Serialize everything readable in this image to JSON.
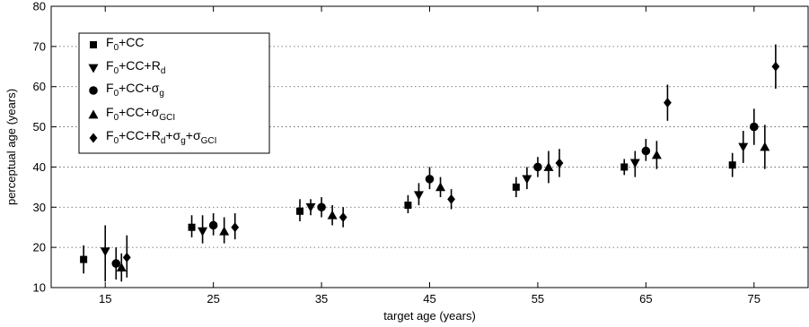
{
  "chart_data": {
    "type": "scatter",
    "title": "",
    "xlabel": "target age (years)",
    "ylabel": "perceptual age (years)",
    "xlim": [
      10,
      80
    ],
    "ylim": [
      10,
      80
    ],
    "xticks": [
      15,
      25,
      35,
      45,
      55,
      65,
      75
    ],
    "yticks": [
      10,
      20,
      30,
      40,
      50,
      60,
      70,
      80
    ],
    "grid": "horizontal dotted",
    "legend_position": "top-left",
    "error_bars": true,
    "marker_color": "#000000",
    "series": [
      {
        "name": "F0+CC",
        "legend_parts": [
          [
            "F",
            ""
          ],
          [
            "0",
            "sub"
          ],
          [
            "+CC",
            ""
          ]
        ],
        "marker": "square",
        "x": [
          13,
          23,
          33,
          43,
          53,
          63,
          73
        ],
        "y": [
          17,
          25,
          29,
          30.5,
          35,
          40,
          40.5
        ],
        "err_low": [
          13.5,
          22.5,
          26.5,
          28.5,
          32.5,
          38,
          37.5
        ],
        "err_high": [
          20.5,
          28,
          32,
          33,
          37.5,
          42,
          43.5
        ]
      },
      {
        "name": "F0+CC+Rd",
        "legend_parts": [
          [
            "F",
            ""
          ],
          [
            "0",
            "sub"
          ],
          [
            "+CC+R",
            ""
          ],
          [
            "d",
            "sub"
          ]
        ],
        "marker": "triangle-down",
        "x": [
          15,
          24,
          34,
          44,
          54,
          64,
          74
        ],
        "y": [
          19,
          24,
          30,
          33,
          37,
          41,
          45
        ],
        "err_low": [
          11.5,
          21,
          28,
          30.5,
          34.5,
          37.5,
          41
        ],
        "err_high": [
          25.5,
          28,
          32,
          36,
          40,
          44,
          49
        ]
      },
      {
        "name": "F0+CC+σg",
        "legend_parts": [
          [
            "F",
            ""
          ],
          [
            "0",
            "sub"
          ],
          [
            "+CC+σ",
            ""
          ],
          [
            "g",
            "sub"
          ]
        ],
        "marker": "circle",
        "x": [
          16,
          25,
          35,
          45,
          55,
          65,
          75
        ],
        "y": [
          16,
          25.5,
          30,
          37,
          40,
          44,
          50
        ],
        "err_low": [
          12,
          23,
          27.5,
          34.5,
          37.5,
          41.5,
          45.5
        ],
        "err_high": [
          20,
          28.5,
          32.5,
          40,
          42.5,
          47,
          54.5
        ]
      },
      {
        "name": "F0+CC+σGCI",
        "legend_parts": [
          [
            "F",
            ""
          ],
          [
            "0",
            "sub"
          ],
          [
            "+CC+σ",
            ""
          ],
          [
            "GCI",
            "sub"
          ]
        ],
        "marker": "triangle-up",
        "x": [
          16.5,
          26,
          36,
          46,
          56,
          66,
          76
        ],
        "y": [
          15,
          24,
          28,
          35,
          40,
          43,
          45
        ],
        "err_low": [
          11.5,
          21,
          25.5,
          32.5,
          36,
          39.5,
          39.5
        ],
        "err_high": [
          18.5,
          27.5,
          30.5,
          37.5,
          44,
          46.5,
          50.5
        ]
      },
      {
        "name": "F0+CC+Rd+σg+σGCI",
        "legend_parts": [
          [
            "F",
            ""
          ],
          [
            "0",
            "sub"
          ],
          [
            "+CC+R",
            ""
          ],
          [
            "d",
            "sub"
          ],
          [
            "+σ",
            ""
          ],
          [
            "g",
            "sub"
          ],
          [
            "+σ",
            ""
          ],
          [
            "GCI",
            "sub"
          ]
        ],
        "marker": "diamond",
        "x": [
          17,
          27,
          37,
          47,
          57,
          67,
          77
        ],
        "y": [
          17.5,
          25,
          27.5,
          32,
          41,
          56,
          65
        ],
        "err_low": [
          12.5,
          22,
          25,
          29.5,
          37.5,
          51.5,
          59.5
        ],
        "err_high": [
          23,
          28.5,
          30,
          34.5,
          44.5,
          60.5,
          70.5
        ]
      }
    ]
  }
}
